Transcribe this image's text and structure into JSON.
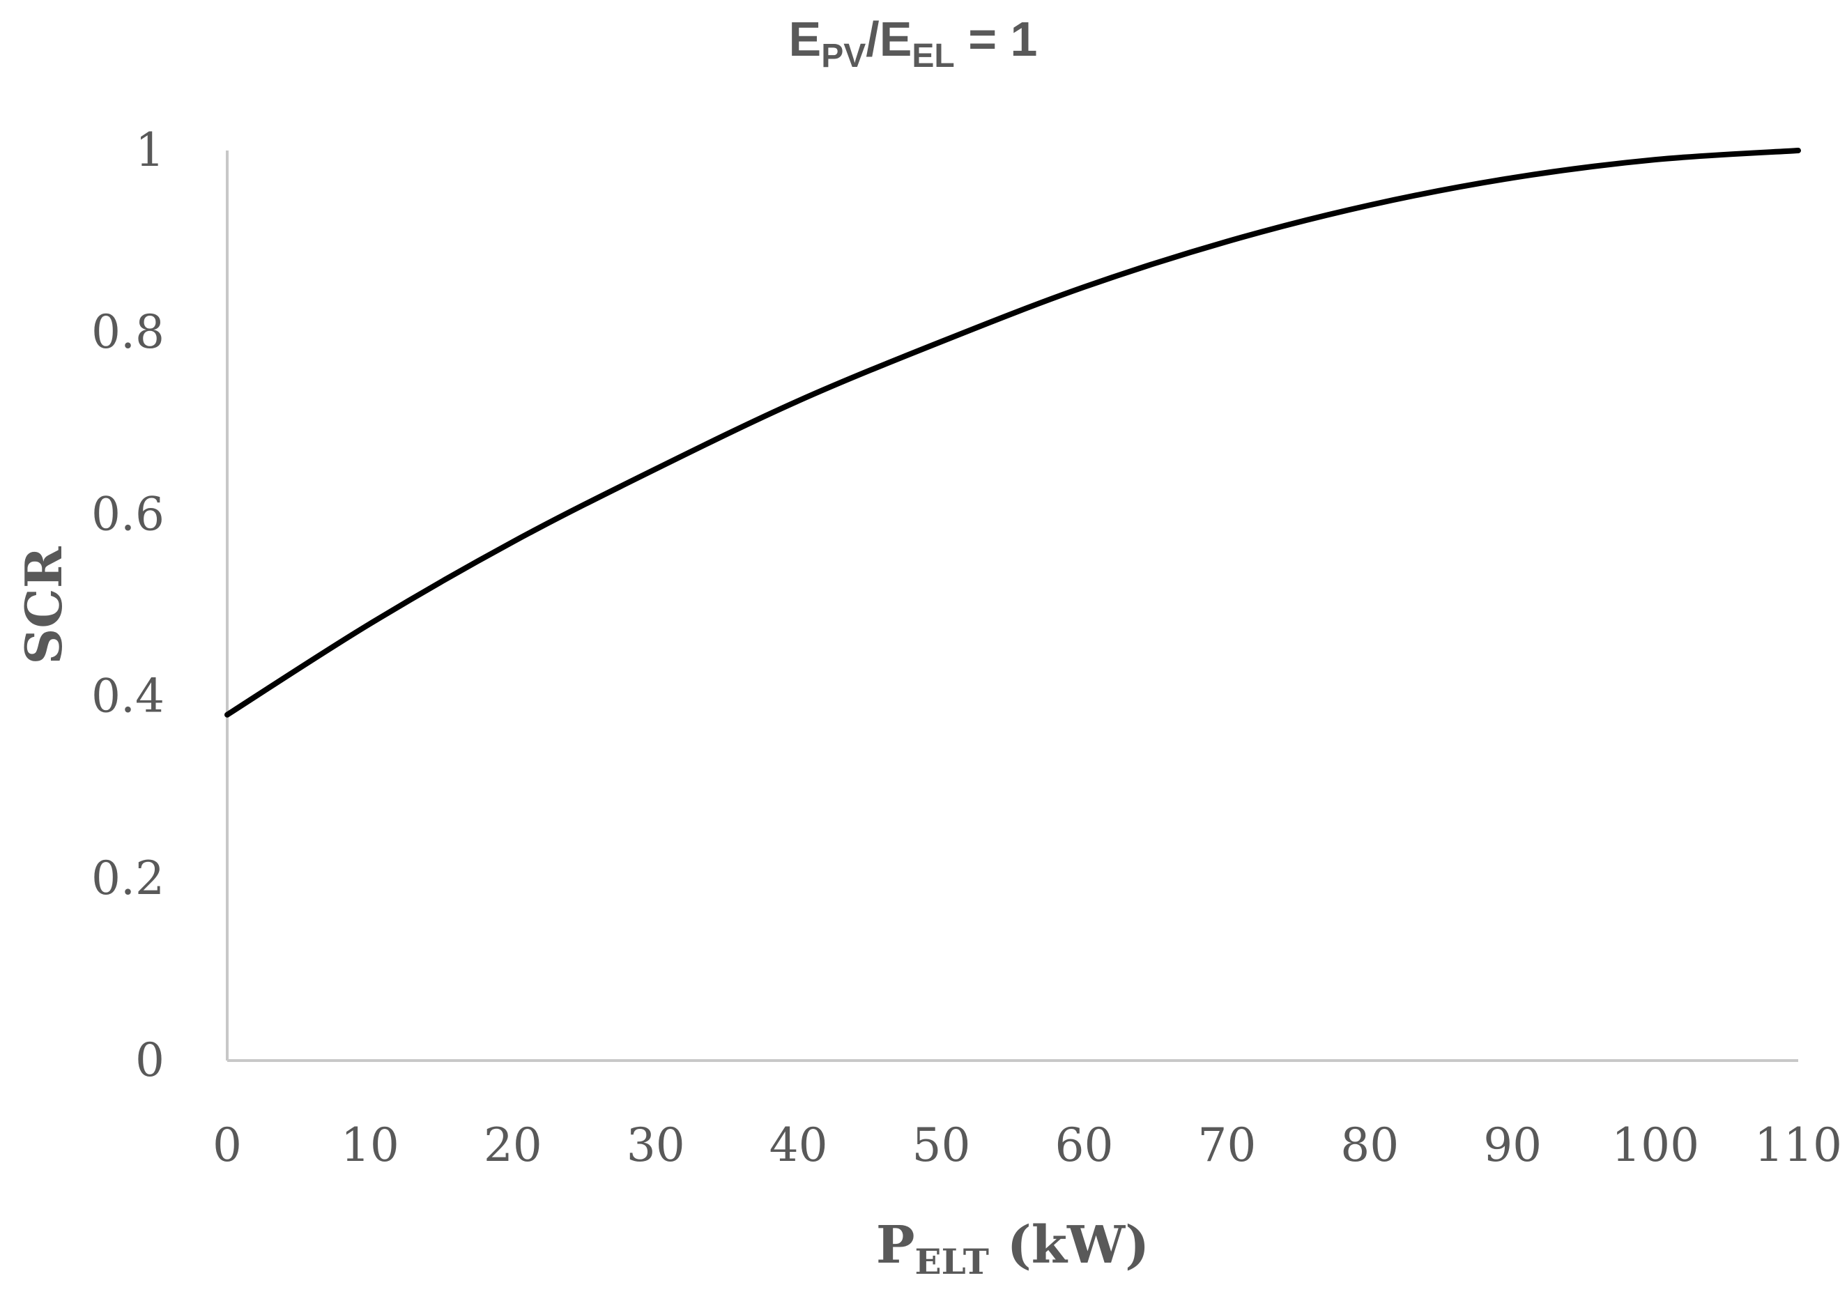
{
  "chart_data": {
    "type": "line",
    "title": {
      "main": "E",
      "sub1": "PV",
      "slash": "/E",
      "sub2": "EL",
      "rest": " = 1"
    },
    "xlabel": {
      "main": "P",
      "sub": "ELT",
      "rest": " (kW)"
    },
    "ylabel": "SCR",
    "xlim": [
      0,
      110
    ],
    "ylim": [
      0,
      1
    ],
    "xticks": [
      "0",
      "10",
      "20",
      "30",
      "40",
      "50",
      "60",
      "70",
      "80",
      "90",
      "100",
      "110"
    ],
    "yticks": [
      "0",
      "0.2",
      "0.4",
      "0.6",
      "0.8",
      "1"
    ],
    "series": [
      {
        "name": "SCR",
        "color": "#000000",
        "x": [
          0,
          10,
          20,
          30,
          40,
          50,
          60,
          70,
          80,
          90,
          100,
          110
        ],
        "y": [
          0.38,
          0.48,
          0.57,
          0.65,
          0.725,
          0.79,
          0.85,
          0.9,
          0.94,
          0.97,
          0.99,
          1.0
        ]
      }
    ]
  }
}
